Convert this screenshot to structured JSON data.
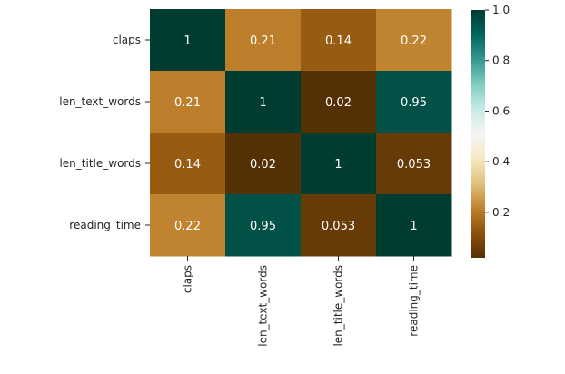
{
  "chart_data": {
    "type": "heatmap",
    "title": "",
    "xlabel": "",
    "ylabel": "",
    "rows": [
      "claps",
      "len_text_words",
      "len_title_words",
      "reading_time"
    ],
    "columns": [
      "claps",
      "len_text_words",
      "len_title_words",
      "reading_time"
    ],
    "values": [
      [
        1,
        0.21,
        0.14,
        0.22
      ],
      [
        0.21,
        1,
        0.02,
        0.95
      ],
      [
        0.14,
        0.02,
        1,
        0.053
      ],
      [
        0.22,
        0.95,
        0.053,
        1
      ]
    ],
    "cell_labels": [
      [
        "1",
        "0.21",
        "0.14",
        "0.22"
      ],
      [
        "0.21",
        "1",
        "0.02",
        "0.95"
      ],
      [
        "0.14",
        "0.02",
        "1",
        "0.053"
      ],
      [
        "0.22",
        "0.95",
        "0.053",
        "1"
      ]
    ],
    "colorbar": {
      "min": 0.02,
      "max": 1.0,
      "colormap": "BrBG",
      "ticks": [
        0.2,
        0.4,
        0.6,
        0.8,
        1.0
      ],
      "tick_labels": [
        "0.2",
        "0.4",
        "0.6",
        "0.8",
        "1.0"
      ]
    },
    "grid": false
  }
}
